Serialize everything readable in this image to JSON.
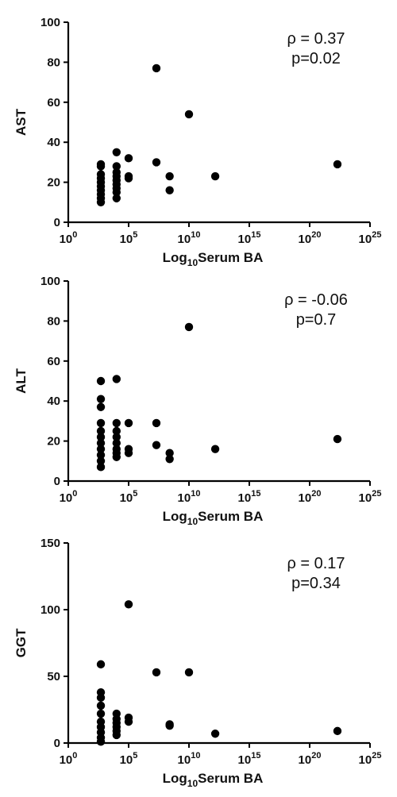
{
  "chart_data": [
    {
      "type": "scatter",
      "title": "",
      "xlabel": {
        "prefix": "Log",
        "sub": "10",
        "suffix": "Serum BA"
      },
      "ylabel": "AST",
      "xscale": "log",
      "x_tick_base": "10",
      "x_tick_exponents": [
        "0",
        "5",
        "10",
        "15",
        "20",
        "25"
      ],
      "xlim": [
        1,
        1e+25
      ],
      "ylim": [
        0,
        100
      ],
      "y_ticks": [
        "0",
        "20",
        "40",
        "60",
        "80",
        "100"
      ],
      "annotation": [
        "ρ = 0.37",
        "p=0.02"
      ],
      "grid": false,
      "points": [
        {
          "x": 500.0,
          "y": 10
        },
        {
          "x": 500.0,
          "y": 12
        },
        {
          "x": 500.0,
          "y": 14
        },
        {
          "x": 500.0,
          "y": 16
        },
        {
          "x": 500.0,
          "y": 18
        },
        {
          "x": 500.0,
          "y": 20
        },
        {
          "x": 500.0,
          "y": 22
        },
        {
          "x": 500.0,
          "y": 24
        },
        {
          "x": 500.0,
          "y": 28
        },
        {
          "x": 500.0,
          "y": 29
        },
        {
          "x": 10000.0,
          "y": 12
        },
        {
          "x": 10000.0,
          "y": 15
        },
        {
          "x": 10000.0,
          "y": 17
        },
        {
          "x": 10000.0,
          "y": 19
        },
        {
          "x": 10000.0,
          "y": 21
        },
        {
          "x": 10000.0,
          "y": 23
        },
        {
          "x": 10000.0,
          "y": 25
        },
        {
          "x": 10000.0,
          "y": 28
        },
        {
          "x": 10000.0,
          "y": 35
        },
        {
          "x": 100000.0,
          "y": 22
        },
        {
          "x": 100000.0,
          "y": 23
        },
        {
          "x": 100000.0,
          "y": 32
        },
        {
          "x": 20000000.0,
          "y": 30
        },
        {
          "x": 20000000.0,
          "y": 77
        },
        {
          "x": 250000000.0,
          "y": 16
        },
        {
          "x": 250000000.0,
          "y": 23
        },
        {
          "x": 10000000000.0,
          "y": 54
        },
        {
          "x": 1500000000000.0,
          "y": 23
        },
        {
          "x": 2e+22,
          "y": 29
        }
      ]
    },
    {
      "type": "scatter",
      "title": "",
      "xlabel": {
        "prefix": "Log",
        "sub": "10",
        "suffix": "Serum BA"
      },
      "ylabel": "ALT",
      "xscale": "log",
      "x_tick_base": "10",
      "x_tick_exponents": [
        "0",
        "5",
        "10",
        "15",
        "20",
        "25"
      ],
      "xlim": [
        1,
        1e+25
      ],
      "ylim": [
        0,
        100
      ],
      "y_ticks": [
        "0",
        "20",
        "40",
        "60",
        "80",
        "100"
      ],
      "annotation": [
        "ρ = -0.06",
        "p=0.7"
      ],
      "grid": false,
      "points": [
        {
          "x": 500.0,
          "y": 7
        },
        {
          "x": 500.0,
          "y": 10
        },
        {
          "x": 500.0,
          "y": 13
        },
        {
          "x": 500.0,
          "y": 16
        },
        {
          "x": 500.0,
          "y": 19
        },
        {
          "x": 500.0,
          "y": 22
        },
        {
          "x": 500.0,
          "y": 25
        },
        {
          "x": 500.0,
          "y": 29
        },
        {
          "x": 500.0,
          "y": 37
        },
        {
          "x": 500.0,
          "y": 41
        },
        {
          "x": 500.0,
          "y": 50
        },
        {
          "x": 10000.0,
          "y": 12
        },
        {
          "x": 10000.0,
          "y": 14
        },
        {
          "x": 10000.0,
          "y": 16
        },
        {
          "x": 10000.0,
          "y": 19
        },
        {
          "x": 10000.0,
          "y": 22
        },
        {
          "x": 10000.0,
          "y": 25
        },
        {
          "x": 10000.0,
          "y": 29
        },
        {
          "x": 10000.0,
          "y": 51
        },
        {
          "x": 100000.0,
          "y": 14
        },
        {
          "x": 100000.0,
          "y": 16
        },
        {
          "x": 100000.0,
          "y": 29
        },
        {
          "x": 20000000.0,
          "y": 18
        },
        {
          "x": 20000000.0,
          "y": 29
        },
        {
          "x": 250000000.0,
          "y": 11
        },
        {
          "x": 250000000.0,
          "y": 14
        },
        {
          "x": 10000000000.0,
          "y": 77
        },
        {
          "x": 1500000000000.0,
          "y": 16
        },
        {
          "x": 2e+22,
          "y": 21
        }
      ]
    },
    {
      "type": "scatter",
      "title": "",
      "xlabel": {
        "prefix": "Log",
        "sub": "10",
        "suffix": "Serum BA"
      },
      "ylabel": "GGT",
      "xscale": "log",
      "x_tick_base": "10",
      "x_tick_exponents": [
        "0",
        "5",
        "10",
        "15",
        "20",
        "25"
      ],
      "xlim": [
        1,
        1e+25
      ],
      "ylim": [
        0,
        150
      ],
      "y_ticks": [
        "0",
        "50",
        "100",
        "150"
      ],
      "annotation": [
        "ρ = 0.17",
        "p=0.34"
      ],
      "grid": false,
      "points": [
        {
          "x": 500.0,
          "y": 1
        },
        {
          "x": 500.0,
          "y": 4
        },
        {
          "x": 500.0,
          "y": 8
        },
        {
          "x": 500.0,
          "y": 12
        },
        {
          "x": 500.0,
          "y": 16
        },
        {
          "x": 500.0,
          "y": 22
        },
        {
          "x": 500.0,
          "y": 28
        },
        {
          "x": 500.0,
          "y": 34
        },
        {
          "x": 500.0,
          "y": 38
        },
        {
          "x": 500.0,
          "y": 59
        },
        {
          "x": 10000.0,
          "y": 6
        },
        {
          "x": 10000.0,
          "y": 9
        },
        {
          "x": 10000.0,
          "y": 12
        },
        {
          "x": 10000.0,
          "y": 15
        },
        {
          "x": 10000.0,
          "y": 18
        },
        {
          "x": 10000.0,
          "y": 22
        },
        {
          "x": 100000.0,
          "y": 16
        },
        {
          "x": 100000.0,
          "y": 19
        },
        {
          "x": 100000.0,
          "y": 104
        },
        {
          "x": 20000000.0,
          "y": 53
        },
        {
          "x": 250000000.0,
          "y": 13
        },
        {
          "x": 250000000.0,
          "y": 14
        },
        {
          "x": 10000000000.0,
          "y": 53
        },
        {
          "x": 1500000000000.0,
          "y": 7
        },
        {
          "x": 2e+22,
          "y": 9
        }
      ]
    }
  ]
}
